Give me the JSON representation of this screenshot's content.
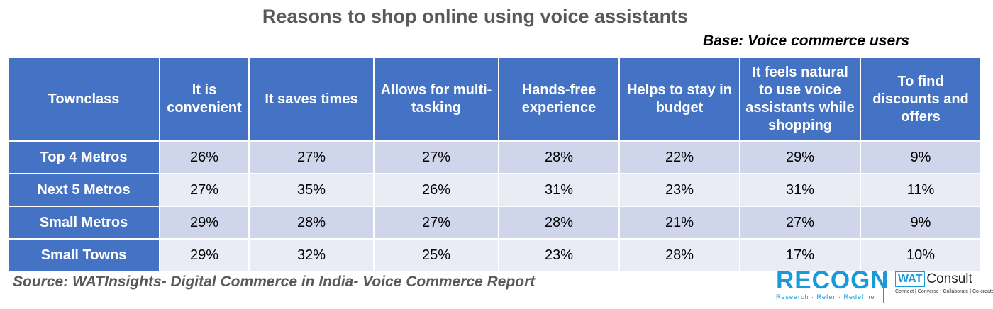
{
  "title": "Reasons to shop online using voice assistants",
  "base_note": "Base: Voice commerce users",
  "chart_data": {
    "type": "table",
    "row_header_label": "Townclass",
    "columns": [
      "It is convenient",
      "It saves times",
      "Allows for multi-tasking",
      "Hands-free experience",
      "Helps to stay in budget",
      "It feels natural to use voice assistants while shopping",
      "To find discounts and offers"
    ],
    "rows": [
      {
        "label": "Top 4 Metros",
        "values": [
          "26%",
          "27%",
          "27%",
          "28%",
          "22%",
          "29%",
          "9%"
        ]
      },
      {
        "label": "Next 5 Metros",
        "values": [
          "27%",
          "35%",
          "26%",
          "31%",
          "23%",
          "31%",
          "11%"
        ]
      },
      {
        "label": "Small Metros",
        "values": [
          "29%",
          "28%",
          "27%",
          "28%",
          "21%",
          "27%",
          "9%"
        ]
      },
      {
        "label": "Small Towns",
        "values": [
          "29%",
          "32%",
          "25%",
          "23%",
          "28%",
          "17%",
          "10%"
        ]
      }
    ]
  },
  "source": "Source: WATInsights- Digital Commerce in India- Voice Commerce Report",
  "logos": {
    "recogn_word": "RECOGN",
    "recogn_tag": "Research · Refer · Redefine",
    "wat_box": "WAT",
    "wat_consult": "Consult",
    "wat_tag": "Connect | Converse | Collaborate | Co-create"
  }
}
